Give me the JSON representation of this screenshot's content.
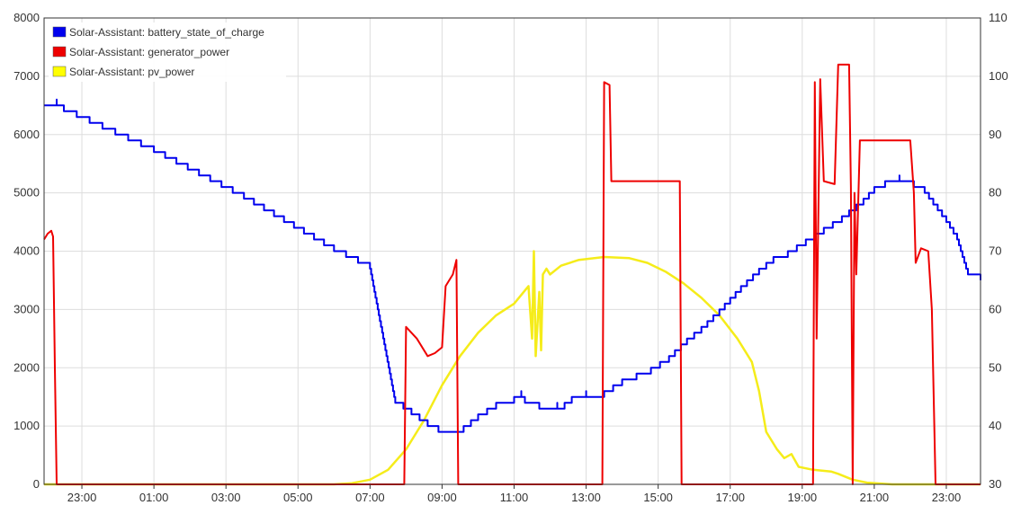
{
  "chart_data": {
    "type": "line",
    "legend_placement": "top-left",
    "grid": true,
    "x_ticks": [
      "23:00",
      "01:00",
      "03:00",
      "05:00",
      "07:00",
      "09:00",
      "11:00",
      "13:00",
      "15:00",
      "17:00",
      "19:00",
      "21:00",
      "23:00"
    ],
    "x_tick_hours": [
      23,
      25,
      27,
      29,
      31,
      33,
      35,
      37,
      39,
      41,
      43,
      45,
      47
    ],
    "x_range_hours": [
      21.95,
      47.95
    ],
    "y_left": {
      "ylim": [
        0,
        8000
      ],
      "ticks": [
        "0",
        "1000",
        "2000",
        "3000",
        "4000",
        "5000",
        "6000",
        "7000",
        "8000"
      ]
    },
    "y_right": {
      "ylim": [
        30,
        110
      ],
      "ticks": [
        "30",
        "40",
        "50",
        "60",
        "70",
        "80",
        "90",
        "100",
        "110"
      ]
    },
    "series": [
      {
        "name": "Solar-Assistant: battery_state_of_charge",
        "color": "#0000ee",
        "axis": "right",
        "step": true,
        "points": [
          [
            21.95,
            95
          ],
          [
            22.3,
            95
          ],
          [
            22.5,
            94
          ],
          [
            25.0,
            87
          ],
          [
            27.5,
            79
          ],
          [
            30.0,
            70
          ],
          [
            31.0,
            67
          ],
          [
            31.7,
            44
          ],
          [
            32.6,
            40
          ],
          [
            32.9,
            39
          ],
          [
            33.6,
            40
          ],
          [
            34.0,
            42
          ],
          [
            34.5,
            44
          ],
          [
            35.0,
            45
          ],
          [
            35.2,
            45
          ],
          [
            35.3,
            44
          ],
          [
            35.7,
            43
          ],
          [
            36.2,
            43
          ],
          [
            36.6,
            45
          ],
          [
            37.0,
            45
          ],
          [
            37.5,
            46
          ],
          [
            38.0,
            48
          ],
          [
            38.4,
            49
          ],
          [
            38.8,
            50
          ],
          [
            39.3,
            52
          ],
          [
            39.8,
            55
          ],
          [
            40.2,
            57
          ],
          [
            40.7,
            60
          ],
          [
            41.3,
            64
          ],
          [
            41.8,
            67
          ],
          [
            42.2,
            69
          ],
          [
            42.6,
            70
          ],
          [
            43.1,
            72
          ],
          [
            43.6,
            74
          ],
          [
            44.1,
            76
          ],
          [
            44.5,
            78
          ],
          [
            44.7,
            79
          ],
          [
            45.0,
            81
          ],
          [
            45.3,
            82
          ],
          [
            45.7,
            82
          ],
          [
            46.1,
            81
          ],
          [
            46.4,
            80
          ],
          [
            47.0,
            75
          ],
          [
            47.3,
            72
          ],
          [
            47.6,
            66
          ],
          [
            47.95,
            65
          ]
        ]
      },
      {
        "name": "Solar-Assistant: generator_power",
        "color": "#ee0000",
        "axis": "left",
        "step": false,
        "points": [
          [
            21.95,
            4200
          ],
          [
            22.05,
            4300
          ],
          [
            22.15,
            4350
          ],
          [
            22.2,
            4250
          ],
          [
            22.25,
            2000
          ],
          [
            22.3,
            0
          ],
          [
            31.95,
            0
          ],
          [
            32.0,
            2700
          ],
          [
            32.3,
            2500
          ],
          [
            32.5,
            2300
          ],
          [
            32.6,
            2200
          ],
          [
            32.8,
            2250
          ],
          [
            33.0,
            2350
          ],
          [
            33.1,
            3400
          ],
          [
            33.3,
            3600
          ],
          [
            33.4,
            3850
          ],
          [
            33.45,
            0
          ],
          [
            37.45,
            0
          ],
          [
            37.5,
            6900
          ],
          [
            37.65,
            6850
          ],
          [
            37.7,
            5200
          ],
          [
            39.6,
            5200
          ],
          [
            39.65,
            0
          ],
          [
            43.3,
            0
          ],
          [
            43.35,
            6900
          ],
          [
            43.4,
            2500
          ],
          [
            43.5,
            6950
          ],
          [
            43.6,
            5200
          ],
          [
            43.9,
            5150
          ],
          [
            44.0,
            7200
          ],
          [
            44.3,
            7200
          ],
          [
            44.35,
            5100
          ],
          [
            44.4,
            0
          ],
          [
            44.45,
            5000
          ],
          [
            44.5,
            3600
          ],
          [
            44.6,
            5900
          ],
          [
            45.3,
            5900
          ],
          [
            46.0,
            5900
          ],
          [
            46.1,
            5000
          ],
          [
            46.15,
            3800
          ],
          [
            46.3,
            4050
          ],
          [
            46.5,
            4000
          ],
          [
            46.6,
            3000
          ],
          [
            46.7,
            0
          ],
          [
            47.95,
            0
          ]
        ]
      },
      {
        "name": "Solar-Assistant: pv_power",
        "color": "#ffff00",
        "axis": "left",
        "step": false,
        "points": [
          [
            21.95,
            0
          ],
          [
            30.0,
            0
          ],
          [
            30.5,
            20
          ],
          [
            31.0,
            80
          ],
          [
            31.5,
            250
          ],
          [
            32.0,
            600
          ],
          [
            32.5,
            1100
          ],
          [
            33.0,
            1700
          ],
          [
            33.5,
            2200
          ],
          [
            34.0,
            2600
          ],
          [
            34.5,
            2900
          ],
          [
            35.0,
            3100
          ],
          [
            35.4,
            3400
          ],
          [
            35.5,
            2500
          ],
          [
            35.55,
            4000
          ],
          [
            35.6,
            2200
          ],
          [
            35.7,
            3300
          ],
          [
            35.75,
            2300
          ],
          [
            35.8,
            3600
          ],
          [
            35.9,
            3700
          ],
          [
            36.0,
            3600
          ],
          [
            36.3,
            3750
          ],
          [
            36.8,
            3850
          ],
          [
            37.5,
            3900
          ],
          [
            38.2,
            3880
          ],
          [
            38.7,
            3800
          ],
          [
            39.2,
            3650
          ],
          [
            39.7,
            3450
          ],
          [
            40.2,
            3200
          ],
          [
            40.7,
            2900
          ],
          [
            41.2,
            2500
          ],
          [
            41.6,
            2100
          ],
          [
            41.8,
            1600
          ],
          [
            42.0,
            900
          ],
          [
            42.3,
            600
          ],
          [
            42.5,
            450
          ],
          [
            42.7,
            520
          ],
          [
            42.9,
            300
          ],
          [
            43.3,
            250
          ],
          [
            43.8,
            220
          ],
          [
            44.0,
            180
          ],
          [
            44.4,
            80
          ],
          [
            44.8,
            30
          ],
          [
            45.5,
            0
          ],
          [
            47.95,
            0
          ]
        ]
      }
    ]
  }
}
